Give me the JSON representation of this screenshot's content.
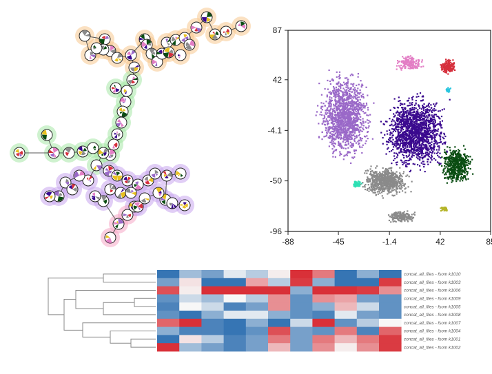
{
  "chart_data": [
    {
      "type": "other",
      "kind": "minimum-spanning-tree",
      "title": "",
      "background_colors": [
        "#f7c98f",
        "#a7e8a7",
        "#c9a6ee",
        "#9db4ee",
        "#f6a8c7"
      ]
    },
    {
      "type": "scatter",
      "title": "",
      "xlabel": "",
      "ylabel": "",
      "xlim": [
        -88,
        85
      ],
      "ylim": [
        -96,
        87
      ],
      "xticks": [
        "-88",
        "-45",
        "-1.4",
        "42",
        "85"
      ],
      "yticks": [
        "87",
        "42",
        "-4.1",
        "-50",
        "-96"
      ],
      "grid": false,
      "clusters": [
        {
          "color": "#3b0a8f",
          "x": 20,
          "y": -5
        },
        {
          "color": "#9a69c8",
          "x": -40,
          "y": 10
        },
        {
          "color": "#8a8a8a",
          "x": -5,
          "y": -50
        },
        {
          "color": "#0a4d12",
          "x": 55,
          "y": -35
        },
        {
          "color": "#d6303d",
          "x": 48,
          "y": 55
        },
        {
          "color": "#e37ec5",
          "x": 15,
          "y": 58
        },
        {
          "color": "#2ee0b5",
          "x": -30,
          "y": -52
        },
        {
          "color": "#b5b52a",
          "x": 45,
          "y": -75
        },
        {
          "color": "#2bc6df",
          "x": 48,
          "y": 33
        },
        {
          "color": "#8a8a8a",
          "x": 8,
          "y": -82
        }
      ]
    },
    {
      "type": "heatmap",
      "title": "",
      "rows": [
        "concat_all_files - fsom k1010",
        "concat_all_files - fsom k1003",
        "concat_all_files - fsom k1006",
        "concat_all_files - fsom k1009",
        "concat_all_files - fsom k1005",
        "concat_all_files - fsom k1008",
        "concat_all_files - fsom k1007",
        "concat_all_files - fsom k1004",
        "concat_all_files - fsom k1001",
        "concat_all_files - fsom k1002"
      ],
      "columns": 11,
      "values": [
        [
          -0.9,
          -0.4,
          -0.6,
          -0.1,
          -0.3,
          0.05,
          0.95,
          0.6,
          -0.9,
          -0.5,
          -0.9
        ],
        [
          -0.6,
          0.1,
          -0.9,
          -0.9,
          0.4,
          -0.3,
          0.9,
          -0.5,
          -0.9,
          -0.9,
          0.9
        ],
        [
          0.8,
          0.05,
          0.95,
          0.95,
          0.95,
          0.95,
          -0.5,
          0.95,
          0.95,
          0.9,
          0.5
        ],
        [
          -0.7,
          -0.2,
          -0.4,
          0.0,
          -0.3,
          0.5,
          -0.7,
          0.5,
          0.4,
          -0.6,
          -0.7
        ],
        [
          -0.8,
          0.0,
          -0.2,
          -0.8,
          -0.6,
          0.5,
          -0.7,
          -0.5,
          0.3,
          -0.2,
          -0.7
        ],
        [
          -0.7,
          -0.9,
          -0.5,
          -0.1,
          -0.1,
          -0.5,
          -0.7,
          -0.8,
          -0.1,
          -0.6,
          -0.7
        ],
        [
          0.7,
          0.95,
          -0.8,
          -0.9,
          -0.5,
          -0.9,
          -0.2,
          0.95,
          -0.7,
          -0.3,
          0.0
        ],
        [
          -0.5,
          -0.8,
          -0.8,
          -0.9,
          -0.7,
          0.8,
          -0.6,
          -0.7,
          0.6,
          -0.8,
          0.7
        ],
        [
          -0.9,
          0.1,
          -0.3,
          -0.8,
          -0.6,
          0.6,
          -0.6,
          0.6,
          0.3,
          0.6,
          0.9
        ],
        [
          0.95,
          -0.4,
          -0.6,
          -0.8,
          -0.6,
          0.3,
          -0.6,
          0.5,
          0.05,
          0.5,
          0.9
        ]
      ],
      "dendrogram_order": [
        "k1010",
        "k1003",
        "k1006",
        "k1009",
        "k1005",
        "k1008",
        "k1007",
        "k1004",
        "k1001",
        "k1002"
      ]
    }
  ]
}
